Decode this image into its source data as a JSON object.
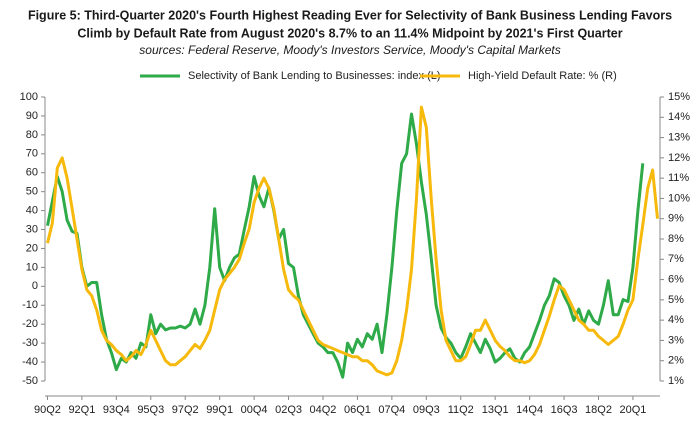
{
  "chart_data": {
    "type": "line",
    "title": [
      "Figure 5: Third-Quarter 2020's Fourth Highest Reading Ever for Selectivity of Bank Business Lending Favors",
      "Climb by Default Rate from August 2020's 8.7% to an 11.4% Midpoint by 2021's First Quarter"
    ],
    "subtitle": "sources: Federal Reserve, Moody's Investors Service, Moody's Capital Markets",
    "categories": [
      "90Q2",
      null,
      null,
      null,
      null,
      null,
      null,
      "92Q1",
      null,
      null,
      null,
      null,
      null,
      null,
      "93Q4",
      null,
      null,
      null,
      null,
      null,
      null,
      "95Q3",
      null,
      null,
      null,
      null,
      null,
      null,
      "97Q2",
      null,
      null,
      null,
      null,
      null,
      null,
      "99Q1",
      null,
      null,
      null,
      null,
      null,
      null,
      "00Q4",
      null,
      null,
      null,
      null,
      null,
      null,
      "02Q3",
      null,
      null,
      null,
      null,
      null,
      null,
      "04Q2",
      null,
      null,
      null,
      null,
      null,
      null,
      "06Q1",
      null,
      null,
      null,
      null,
      null,
      null,
      "07Q4",
      null,
      null,
      null,
      null,
      null,
      null,
      "09Q3",
      null,
      null,
      null,
      null,
      null,
      null,
      "11Q2",
      null,
      null,
      null,
      null,
      null,
      null,
      "13Q1",
      null,
      null,
      null,
      null,
      null,
      null,
      "14Q4",
      null,
      null,
      null,
      null,
      null,
      null,
      "16Q3",
      null,
      null,
      null,
      null,
      null,
      null,
      "18Q2",
      null,
      null,
      null,
      null,
      null,
      null,
      "20Q1",
      null,
      null,
      null,
      null,
      null
    ],
    "series": [
      {
        "name": "Selectivity of Bank Lending to Businesses: index (L)",
        "color": "#2eaa48",
        "axis": "y",
        "values": [
          32,
          45,
          58,
          50,
          35,
          29,
          28,
          10,
          0,
          2,
          2,
          -15,
          -28,
          -35,
          -44,
          -38,
          -40,
          -35,
          -38,
          -30,
          -32,
          -15,
          -25,
          -20,
          -23,
          -22,
          -22,
          -21,
          -22,
          -20,
          -12,
          -20,
          -10,
          10,
          41,
          10,
          3,
          10,
          15,
          17,
          30,
          42,
          58,
          48,
          42,
          52,
          40,
          25,
          30,
          12,
          10,
          -5,
          -15,
          -20,
          -25,
          -30,
          -32,
          -35,
          -35,
          -40,
          -48,
          -30,
          -35,
          -28,
          -32,
          -25,
          -28,
          -20,
          -35,
          -15,
          10,
          40,
          65,
          70,
          91,
          75,
          55,
          38,
          15,
          -10,
          -22,
          -27,
          -30,
          -35,
          -38,
          -32,
          -25,
          -30,
          -35,
          -28,
          -33,
          -40,
          -38,
          -35,
          -33,
          -38,
          -40,
          -35,
          -32,
          -25,
          -18,
          -10,
          -5,
          4,
          2,
          -5,
          -10,
          -18,
          -12,
          -20,
          -13,
          -18,
          -20,
          -10,
          3,
          -15,
          -15,
          -7,
          -8,
          10,
          40,
          65,
          null,
          null,
          null
        ]
      },
      {
        "name": "High-Yield Default Rate: % (R)",
        "color": "#f6b90c",
        "axis": "y2",
        "values": [
          7.8,
          8.8,
          11.5,
          12,
          11,
          9.5,
          8,
          6.5,
          5.5,
          5.2,
          4.5,
          3.5,
          3,
          2.8,
          2.5,
          2.3,
          2,
          2.2,
          2.5,
          2.3,
          2.8,
          3.5,
          3,
          2.5,
          2,
          1.8,
          1.8,
          2,
          2.2,
          2.5,
          2.8,
          2.6,
          3,
          3.5,
          4.5,
          5.5,
          6,
          6.3,
          6.6,
          7,
          7.8,
          8.5,
          9.8,
          10.5,
          11,
          10.5,
          9.5,
          8,
          6.5,
          5.5,
          5.2,
          5,
          4.5,
          4,
          3.5,
          3,
          2.8,
          2.7,
          2.6,
          2.5,
          2.4,
          2.3,
          2.2,
          2.2,
          2,
          2,
          1.8,
          1.5,
          1.4,
          1.3,
          1.4,
          2,
          3,
          4.5,
          6.5,
          10,
          14.5,
          13.5,
          10,
          7,
          4.5,
          3,
          2.5,
          2,
          2,
          2.2,
          2.8,
          3.5,
          3.5,
          4,
          3.5,
          3,
          2.7,
          2.5,
          2.2,
          2,
          2,
          1.9,
          2,
          2.3,
          2.8,
          3.5,
          4.2,
          5,
          5.7,
          5.5,
          5,
          4.5,
          4,
          3.8,
          3.5,
          3.5,
          3.2,
          3,
          2.8,
          3,
          3.2,
          3.8,
          4.5,
          5,
          7,
          8.7,
          10.5,
          11.4,
          9
        ]
      }
    ],
    "ylim": [
      -50,
      100
    ],
    "yticks": [
      -50,
      -40,
      -30,
      -20,
      -10,
      0,
      10,
      20,
      30,
      40,
      50,
      60,
      70,
      80,
      90,
      100
    ],
    "y2lim": [
      1,
      15
    ],
    "y2ticks": [
      {
        "value": 1,
        "label": "1%"
      },
      {
        "value": 2,
        "label": "2%"
      },
      {
        "value": 3,
        "label": "3%"
      },
      {
        "value": 4,
        "label": "4%"
      },
      {
        "value": 5,
        "label": "5%"
      },
      {
        "value": 6,
        "label": "6%"
      },
      {
        "value": 7,
        "label": "7%"
      },
      {
        "value": 8,
        "label": "8%"
      },
      {
        "value": 9,
        "label": "9%"
      },
      {
        "value": 10,
        "label": "10%"
      },
      {
        "value": 11,
        "label": "11%"
      },
      {
        "value": 12,
        "label": "12%"
      },
      {
        "value": 13,
        "label": "13%"
      },
      {
        "value": 14,
        "label": "14%"
      },
      {
        "value": 15,
        "label": "15%"
      }
    ],
    "legend": "top"
  }
}
